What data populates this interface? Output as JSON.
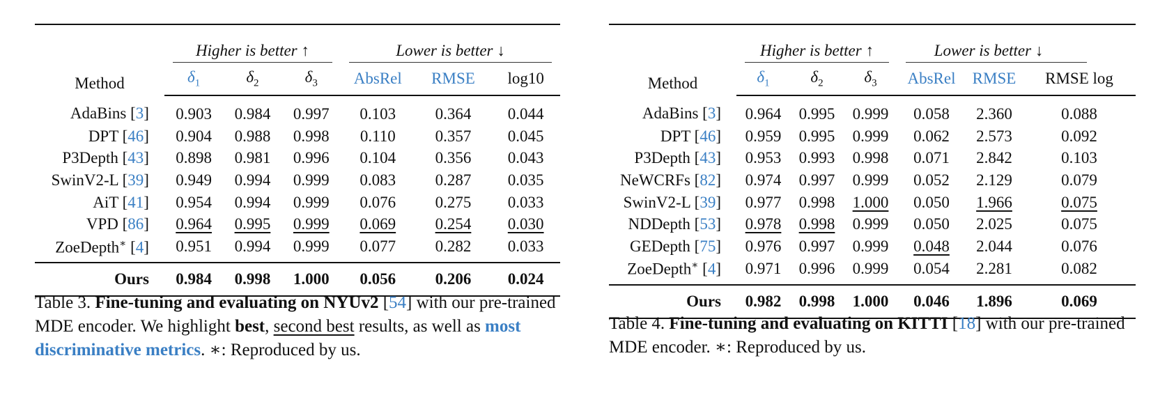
{
  "table3": {
    "header": {
      "method": "Method",
      "higher": "Higher is better ↑",
      "lower": "Lower is better ↓",
      "metrics": [
        {
          "label": "δ1",
          "base": "δ",
          "sub": "1",
          "blue": true
        },
        {
          "label": "δ2",
          "base": "δ",
          "sub": "2",
          "blue": false
        },
        {
          "label": "δ3",
          "base": "δ",
          "sub": "3",
          "blue": false
        },
        {
          "label": "AbsRel",
          "blue": true
        },
        {
          "label": "RMSE",
          "blue": true
        },
        {
          "label": "log10",
          "blue": false
        }
      ]
    },
    "rows": [
      {
        "name": "AdaBins",
        "ref": "3",
        "star": false,
        "values": [
          "0.903",
          "0.984",
          "0.997",
          "0.103",
          "0.364",
          "0.044"
        ],
        "underline": []
      },
      {
        "name": "DPT",
        "ref": "46",
        "star": false,
        "values": [
          "0.904",
          "0.988",
          "0.998",
          "0.110",
          "0.357",
          "0.045"
        ],
        "underline": []
      },
      {
        "name": "P3Depth",
        "ref": "43",
        "star": false,
        "values": [
          "0.898",
          "0.981",
          "0.996",
          "0.104",
          "0.356",
          "0.043"
        ],
        "underline": []
      },
      {
        "name": "SwinV2-L",
        "ref": "39",
        "star": false,
        "values": [
          "0.949",
          "0.994",
          "0.999",
          "0.083",
          "0.287",
          "0.035"
        ],
        "underline": []
      },
      {
        "name": "AiT",
        "ref": "41",
        "star": false,
        "values": [
          "0.954",
          "0.994",
          "0.999",
          "0.076",
          "0.275",
          "0.033"
        ],
        "underline": []
      },
      {
        "name": "VPD",
        "ref": "86",
        "star": false,
        "values": [
          "0.964",
          "0.995",
          "0.999",
          "0.069",
          "0.254",
          "0.030"
        ],
        "underline": [
          0,
          1,
          2,
          3,
          4,
          5
        ]
      },
      {
        "name": "ZoeDepth",
        "ref": "4",
        "star": true,
        "values": [
          "0.951",
          "0.994",
          "0.999",
          "0.077",
          "0.282",
          "0.033"
        ],
        "underline": []
      }
    ],
    "ours": {
      "name": "Ours",
      "values": [
        "0.984",
        "0.998",
        "1.000",
        "0.056",
        "0.206",
        "0.024"
      ]
    },
    "caption": {
      "prefix": "Table 3.",
      "title": "Fine-tuning and evaluating on NYUv2",
      "ref": "54",
      "text1": " with our pre-trained MDE encoder. We highlight ",
      "best": "best",
      "comma": ", ",
      "second": "second best",
      "text2": " results, as well as ",
      "discrim": "most discriminative metrics",
      "text3": ". ∗: Reproduced by us."
    }
  },
  "table4": {
    "header": {
      "method": "Method",
      "higher": "Higher is better ↑",
      "lower": "Lower is better ↓",
      "metrics": [
        {
          "label": "δ1",
          "base": "δ",
          "sub": "1",
          "blue": true
        },
        {
          "label": "δ2",
          "base": "δ",
          "sub": "2",
          "blue": false
        },
        {
          "label": "δ3",
          "base": "δ",
          "sub": "3",
          "blue": false
        },
        {
          "label": "AbsRel",
          "blue": true
        },
        {
          "label": "RMSE",
          "blue": true
        },
        {
          "label": "RMSE log",
          "blue": false
        }
      ]
    },
    "rows": [
      {
        "name": "AdaBins",
        "ref": "3",
        "star": false,
        "values": [
          "0.964",
          "0.995",
          "0.999",
          "0.058",
          "2.360",
          "0.088"
        ],
        "underline": []
      },
      {
        "name": "DPT",
        "ref": "46",
        "star": false,
        "values": [
          "0.959",
          "0.995",
          "0.999",
          "0.062",
          "2.573",
          "0.092"
        ],
        "underline": []
      },
      {
        "name": "P3Depth",
        "ref": "43",
        "star": false,
        "values": [
          "0.953",
          "0.993",
          "0.998",
          "0.071",
          "2.842",
          "0.103"
        ],
        "underline": []
      },
      {
        "name": "NeWCRFs",
        "ref": "82",
        "star": false,
        "values": [
          "0.974",
          "0.997",
          "0.999",
          "0.052",
          "2.129",
          "0.079"
        ],
        "underline": []
      },
      {
        "name": "SwinV2-L",
        "ref": "39",
        "star": false,
        "values": [
          "0.977",
          "0.998",
          "1.000",
          "0.050",
          "1.966",
          "0.075"
        ],
        "underline": [
          2,
          4,
          5
        ]
      },
      {
        "name": "NDDepth",
        "ref": "53",
        "star": false,
        "values": [
          "0.978",
          "0.998",
          "0.999",
          "0.050",
          "2.025",
          "0.075"
        ],
        "underline": [
          0,
          1
        ]
      },
      {
        "name": "GEDepth",
        "ref": "75",
        "star": false,
        "values": [
          "0.976",
          "0.997",
          "0.999",
          "0.048",
          "2.044",
          "0.076"
        ],
        "underline": [
          3
        ]
      },
      {
        "name": "ZoeDepth",
        "ref": "4",
        "star": true,
        "values": [
          "0.971",
          "0.996",
          "0.999",
          "0.054",
          "2.281",
          "0.082"
        ],
        "underline": []
      }
    ],
    "ours": {
      "name": "Ours",
      "values": [
        "0.982",
        "0.998",
        "1.000",
        "0.046",
        "1.896",
        "0.069"
      ]
    },
    "caption": {
      "prefix": "Table 4.",
      "title": "Fine-tuning and evaluating on KITTI",
      "ref": "18",
      "text1": " with our pre-trained MDE encoder. ∗: Reproduced by us."
    }
  }
}
